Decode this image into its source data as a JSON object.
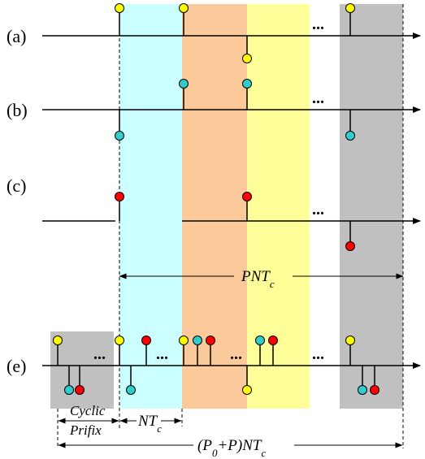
{
  "labels": {
    "row_a": "(a)",
    "row_b": "(b)",
    "row_c": "(c)",
    "row_e": "(e)"
  },
  "dimensions": {
    "pnt": "PNT",
    "nt": "NT",
    "total_prefix": "(P",
    "total_sub0": "0",
    "total_suffix": "+P)NT",
    "sub_c": "c",
    "cp_line1": "Cyclic",
    "cp_line2": "Prifix"
  },
  "ellipsis": "...",
  "colors": {
    "yellow": "#ffff00",
    "cyan": "#33cccc",
    "red": "#ff0000",
    "band_cyan": "#ccffff",
    "band_orange": "#fcc99b",
    "band_yellow": "#ffff99",
    "band_gray": "#c0c0c0"
  }
}
